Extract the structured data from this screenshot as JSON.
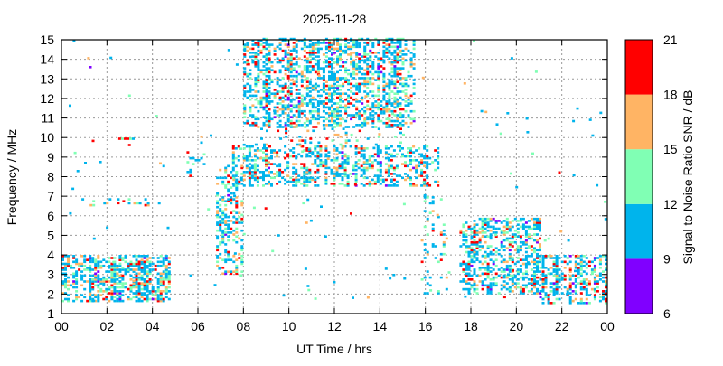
{
  "chart_data": {
    "type": "scatter",
    "title": "2025-11-28",
    "xlabel": "UT Time / hrs",
    "ylabel": "Frequency / MHz",
    "xlim": [
      0,
      24
    ],
    "ylim": [
      1,
      15
    ],
    "x_ticks": [
      "00",
      "02",
      "04",
      "06",
      "08",
      "10",
      "12",
      "14",
      "16",
      "18",
      "20",
      "22",
      "00"
    ],
    "y_ticks": [
      "1",
      "2",
      "3",
      "4",
      "5",
      "6",
      "7",
      "8",
      "9",
      "10",
      "11",
      "12",
      "13",
      "14",
      "15"
    ],
    "grid": true,
    "colorbar": {
      "label": "Signal to Noise Ratio SNR / dB",
      "ticks": [
        "6",
        "9",
        "12",
        "15",
        "18",
        "21"
      ],
      "bands": [
        {
          "min": 6,
          "max": 9,
          "color": "#8000ff"
        },
        {
          "min": 9,
          "max": 12,
          "color": "#00b4ec"
        },
        {
          "min": 12,
          "max": 15,
          "color": "#80ffb4"
        },
        {
          "min": 15,
          "max": 18,
          "color": "#ffb464"
        },
        {
          "min": 18,
          "max": 21,
          "color": "#ff0000"
        }
      ]
    },
    "echo_regions": [
      {
        "t": [
          0.0,
          4.8
        ],
        "f": [
          1.6,
          4.0
        ],
        "density": 0.55
      },
      {
        "t": [
          0.4,
          4.4
        ],
        "f": [
          6.5,
          6.8
        ],
        "density": 0.12
      },
      {
        "t": [
          2.5,
          3.2
        ],
        "f": [
          9.9,
          10.0
        ],
        "density": 0.5
      },
      {
        "t": [
          5.5,
          6.3
        ],
        "f": [
          8.0,
          10.0
        ],
        "density": 0.08
      },
      {
        "t": [
          6.8,
          8.0
        ],
        "f": [
          3.0,
          8.5
        ],
        "density": 0.3
      },
      {
        "t": [
          7.5,
          16.5
        ],
        "f": [
          7.5,
          9.5
        ],
        "density": 0.38
      },
      {
        "t": [
          8.0,
          15.5
        ],
        "f": [
          10.5,
          15.0
        ],
        "density": 0.42
      },
      {
        "t": [
          8.5,
          15.2
        ],
        "f": [
          9.5,
          10.5
        ],
        "density": 0.1
      },
      {
        "t": [
          15.8,
          17.0
        ],
        "f": [
          2.0,
          7.0
        ],
        "density": 0.12
      },
      {
        "t": [
          17.5,
          21.0
        ],
        "f": [
          2.0,
          5.8
        ],
        "density": 0.4
      },
      {
        "t": [
          21.0,
          24.0
        ],
        "f": [
          1.5,
          4.0
        ],
        "density": 0.5
      }
    ]
  }
}
